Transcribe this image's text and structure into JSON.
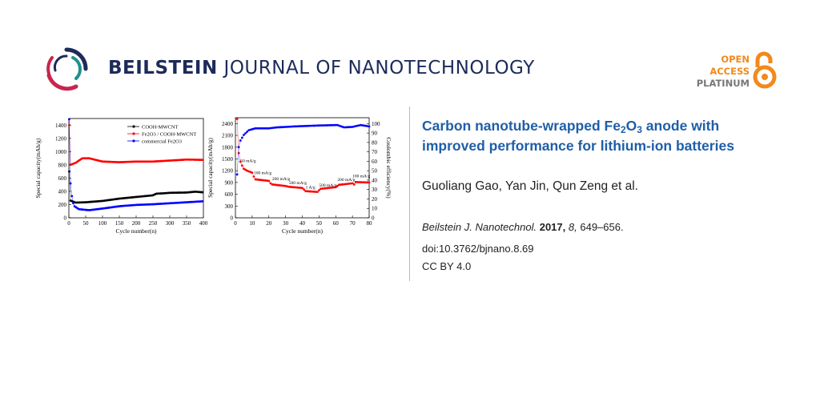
{
  "header": {
    "brand_bold": "BEILSTEIN",
    "brand_light": "JOURNAL OF NANOTECHNOLOGY",
    "badge": {
      "line1": "OPEN",
      "line2": "ACCESS",
      "line3": "PLATINUM"
    }
  },
  "colors": {
    "brand_navy": "#1d2b5b",
    "accent_red": "#c8254f",
    "accent_teal": "#1f8f8f",
    "oa_orange": "#f18a1c",
    "title_blue": "#1f5ea8"
  },
  "article": {
    "title_pre": "Carbon nanotube-wrapped Fe",
    "title_sub1": "2",
    "title_mid": "O",
    "title_sub2": "3",
    "title_post": " anode with improved performance for lithium-ion batteries",
    "authors": "Guoliang Gao, Yan Jin, Qun Zeng et al.",
    "journal": "Beilstein J. Nanotechnol.",
    "year": "2017,",
    "volume": "8,",
    "pages": "649–656.",
    "doi": "doi:10.3762/bjnano.8.69",
    "license": "CC BY 4.0"
  },
  "chart_data": [
    {
      "type": "scatter",
      "xlabel": "Cycle number(n)",
      "ylabel": "Special capacity(mAh/g)",
      "xlim": [
        0,
        400
      ],
      "ylim": [
        0,
        1500
      ],
      "xticks": [
        0,
        50,
        100,
        150,
        200,
        250,
        300,
        350,
        400
      ],
      "yticks": [
        0,
        200,
        400,
        600,
        800,
        1000,
        1200,
        1400
      ],
      "legend": "top-right",
      "series": [
        {
          "name": "COOH-MWCNT",
          "color": "#000000",
          "points": [
            [
              1,
              700
            ],
            [
              5,
              260
            ],
            [
              20,
              230
            ],
            [
              50,
              235
            ],
            [
              100,
              255
            ],
            [
              150,
              290
            ],
            [
              200,
              315
            ],
            [
              250,
              340
            ],
            [
              260,
              365
            ],
            [
              280,
              370
            ],
            [
              300,
              378
            ],
            [
              350,
              382
            ],
            [
              375,
              395
            ],
            [
              400,
              385
            ]
          ]
        },
        {
          "name": "Fe2O3 / COOH-MWCNT",
          "color": "#ff0000",
          "points": [
            [
              1,
              1400
            ],
            [
              4,
              800
            ],
            [
              20,
              830
            ],
            [
              40,
              900
            ],
            [
              60,
              900
            ],
            [
              100,
              850
            ],
            [
              150,
              840
            ],
            [
              200,
              850
            ],
            [
              250,
              850
            ],
            [
              300,
              865
            ],
            [
              350,
              880
            ],
            [
              400,
              875
            ]
          ]
        },
        {
          "name": "commercial Fe2O3",
          "color": "#0000ff",
          "points": [
            [
              1,
              1490
            ],
            [
              5,
              520
            ],
            [
              10,
              280
            ],
            [
              15,
              180
            ],
            [
              30,
              130
            ],
            [
              60,
              115
            ],
            [
              100,
              140
            ],
            [
              150,
              175
            ],
            [
              200,
              195
            ],
            [
              250,
              205
            ],
            [
              300,
              220
            ],
            [
              350,
              235
            ],
            [
              400,
              250
            ]
          ]
        }
      ]
    },
    {
      "type": "scatter",
      "xlabel": "Cycle number(n)",
      "ylabel": "Special capacity(mAh/g)",
      "y2label": "Coulombic efficiency(%)",
      "xlim": [
        0,
        80
      ],
      "ylim": [
        0,
        2550
      ],
      "y2lim": [
        0,
        106.25
      ],
      "xticks": [
        0,
        10,
        20,
        30,
        40,
        50,
        60,
        70,
        80
      ],
      "yticks": [
        0,
        300,
        600,
        900,
        1200,
        1500,
        1800,
        2100,
        2400
      ],
      "y2ticks": [
        0,
        10,
        20,
        30,
        40,
        50,
        60,
        70,
        80,
        90,
        100
      ],
      "series": [
        {
          "name": "capacity",
          "color": "#ff0000",
          "axis": "left",
          "points": [
            [
              1,
              2520
            ],
            [
              2,
              1650
            ],
            [
              3,
              1430
            ],
            [
              4,
              1330
            ],
            [
              5,
              1250
            ],
            [
              7,
              1200
            ],
            [
              10,
              1150
            ],
            [
              11,
              1050
            ],
            [
              12,
              980
            ],
            [
              20,
              940
            ],
            [
              21,
              880
            ],
            [
              22,
              850
            ],
            [
              30,
              810
            ],
            [
              32,
              790
            ],
            [
              40,
              760
            ],
            [
              42,
              680
            ],
            [
              49,
              660
            ],
            [
              51,
              740
            ],
            [
              60,
              780
            ],
            [
              62,
              840
            ],
            [
              70,
              880
            ],
            [
              71,
              850
            ],
            [
              72,
              910
            ],
            [
              80,
              900
            ]
          ]
        },
        {
          "name": "coulombic efficiency",
          "color": "#0000ff",
          "axis": "right",
          "points": [
            [
              1,
              46
            ],
            [
              2,
              75
            ],
            [
              3,
              82
            ],
            [
              5,
              88
            ],
            [
              8,
              93
            ],
            [
              12,
              95
            ],
            [
              20,
              95
            ],
            [
              25,
              96
            ],
            [
              35,
              97
            ],
            [
              50,
              98
            ],
            [
              61,
              98.5
            ],
            [
              65,
              96
            ],
            [
              70,
              96.5
            ],
            [
              75,
              98.5
            ],
            [
              80,
              97
            ]
          ]
        }
      ],
      "annotations": [
        {
          "text": "50 mA/g",
          "at": [
            3,
            1420
          ]
        },
        {
          "text": "100 mA/g",
          "at": [
            11,
            1110
          ]
        },
        {
          "text": "200 mA/g",
          "at": [
            22,
            960
          ]
        },
        {
          "text": "500 mA/g",
          "at": [
            32,
            860
          ]
        },
        {
          "text": "1 A/g",
          "at": [
            42,
            740
          ]
        },
        {
          "text": "500 mA/g",
          "at": [
            50,
            800
          ]
        },
        {
          "text": "200 mA/g",
          "at": [
            61,
            940
          ]
        },
        {
          "text": "100 mA/g",
          "at": [
            70,
            1030
          ]
        }
      ]
    }
  ]
}
